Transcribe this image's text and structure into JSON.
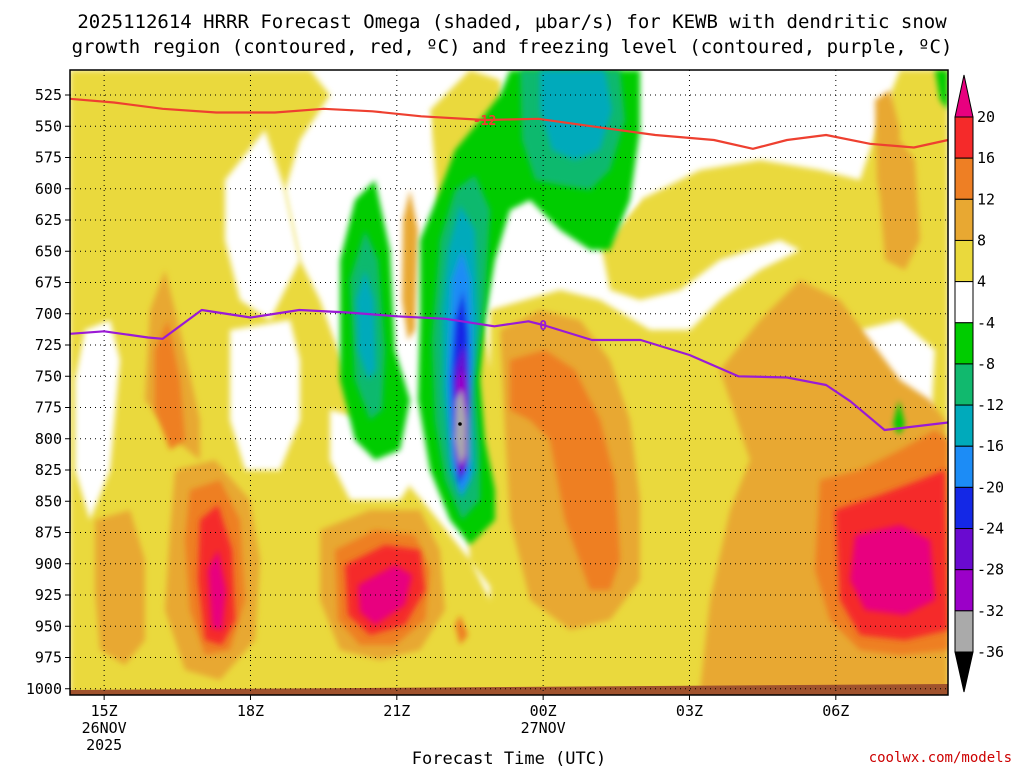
{
  "chart_data": {
    "type": "heatmap",
    "title_line1": "2025112614 HRRR Forecast Omega (shaded, µbar/s) for KEWB with dendritic snow",
    "title_line2": "growth region (contoured, red, ºC) and freezing level (contoured, purple, ºC)",
    "xlabel": "Forecast Time (UTC)",
    "credit": "coolwx.com/models",
    "y_ticks": [
      "525",
      "550",
      "575",
      "600",
      "625",
      "650",
      "675",
      "700",
      "725",
      "750",
      "775",
      "800",
      "825",
      "850",
      "875",
      "900",
      "925",
      "950",
      "975",
      "1000"
    ],
    "y_range_hpa": [
      505,
      1005
    ],
    "x_range_hours": [
      14.3,
      32.3
    ],
    "x_ticks": [
      {
        "hour": 15,
        "label": "15Z",
        "date": "26NOV",
        "year": "2025"
      },
      {
        "hour": 18,
        "label": "18Z",
        "date": "",
        "year": ""
      },
      {
        "hour": 21,
        "label": "21Z",
        "date": "",
        "year": ""
      },
      {
        "hour": 24,
        "label": "00Z",
        "date": "27NOV",
        "year": ""
      },
      {
        "hour": 27,
        "label": "03Z",
        "date": "",
        "year": ""
      },
      {
        "hour": 30,
        "label": "06Z",
        "date": "",
        "year": ""
      }
    ],
    "colorbar": {
      "labels": [
        "20",
        "16",
        "12",
        "8",
        "4",
        "-4",
        "-8",
        "-12",
        "-16",
        "-20",
        "-24",
        "-28",
        "-32",
        "-36"
      ],
      "colors": [
        "#e8007f",
        "#f52a2a",
        "#ee7f24",
        "#e8a832",
        "#ead93c",
        "#ffffff",
        "#00cc00",
        "#11b96e",
        "#00aabb",
        "#1c8cf6",
        "#1428e6",
        "#6a0ad0",
        "#9b00c8",
        "#aaaaaa"
      ],
      "top_triangle": "#e8007f",
      "bottom_triangle": "#000000"
    },
    "contours": {
      "dgz_minus12": {
        "label": "-12",
        "color": "#ee4030",
        "points": [
          [
            14.3,
            528
          ],
          [
            15.2,
            531
          ],
          [
            16.2,
            536
          ],
          [
            17.3,
            539
          ],
          [
            18.5,
            539
          ],
          [
            19.5,
            536
          ],
          [
            20.5,
            538
          ],
          [
            21.5,
            542
          ],
          [
            22.8,
            545
          ],
          [
            23.9,
            544
          ],
          [
            25.0,
            550
          ],
          [
            26.3,
            557
          ],
          [
            27.5,
            561
          ],
          [
            28.3,
            568
          ],
          [
            29.0,
            561
          ],
          [
            29.8,
            557
          ],
          [
            30.7,
            564
          ],
          [
            31.6,
            567
          ],
          [
            32.3,
            561
          ]
        ]
      },
      "freezing_0": {
        "label": "0",
        "color": "#9a1ad6",
        "points": [
          [
            14.3,
            716
          ],
          [
            15.0,
            714
          ],
          [
            15.9,
            719
          ],
          [
            16.2,
            720
          ],
          [
            17.0,
            697
          ],
          [
            18.0,
            703
          ],
          [
            19.0,
            697
          ],
          [
            20.0,
            699
          ],
          [
            21.0,
            702
          ],
          [
            22.0,
            704
          ],
          [
            23.0,
            710
          ],
          [
            23.7,
            706
          ],
          [
            24.0,
            709
          ],
          [
            25.0,
            721
          ],
          [
            26.0,
            721
          ],
          [
            27.0,
            733
          ],
          [
            28.0,
            750
          ],
          [
            29.0,
            751
          ],
          [
            29.8,
            757
          ],
          [
            30.3,
            770
          ],
          [
            31.0,
            793
          ],
          [
            32.3,
            787
          ]
        ]
      }
    },
    "omega_cores": [
      {
        "hour": 17.05,
        "hpa": 925,
        "value": 20
      },
      {
        "hour": 20.8,
        "hpa": 905,
        "value": 20
      },
      {
        "hour": 22.0,
        "hpa": 750,
        "value": -36
      },
      {
        "hour": 24.3,
        "hpa": 740,
        "value": 16
      },
      {
        "hour": 31.2,
        "hpa": 880,
        "value": 20
      },
      {
        "hour": 24.6,
        "hpa": 540,
        "value": -16
      }
    ]
  }
}
